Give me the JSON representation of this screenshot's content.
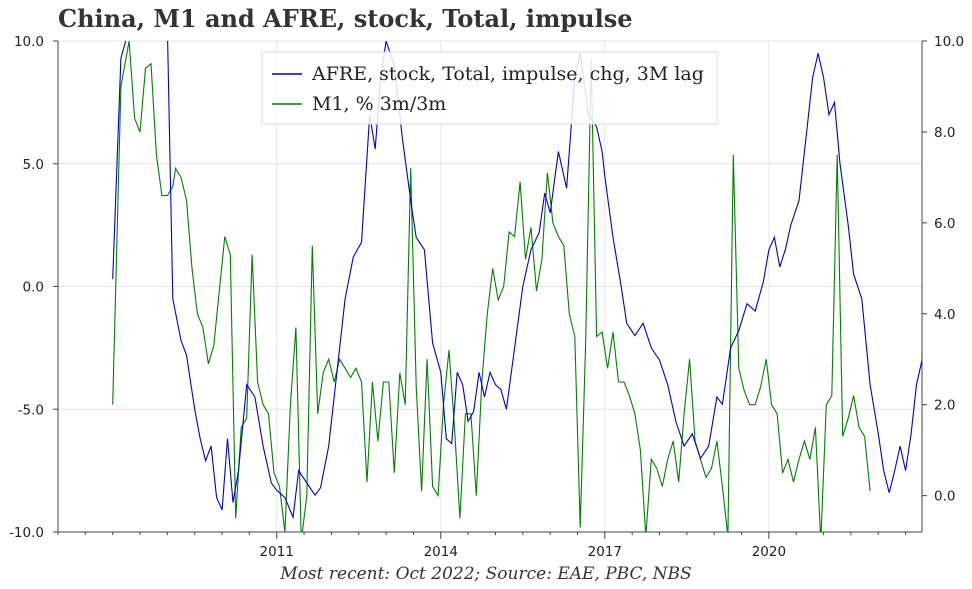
{
  "chart_data": {
    "type": "line",
    "title": "China, M1 and AFRE, stock, Total, impulse",
    "source": "Most recent: Oct 2022; Source: EAE, PBC, NBS",
    "left_axis": {
      "ylim": [
        -10,
        10
      ],
      "ticks": [
        "10.0",
        "5.0",
        "0.0",
        "-5.0",
        "-10.0"
      ],
      "tick_values": [
        10,
        5,
        0,
        -5,
        -10
      ]
    },
    "right_axis": {
      "ylim": [
        -0.8,
        10.0
      ],
      "ticks": [
        "10.0",
        "8.0",
        "6.0",
        "4.0",
        "2.0",
        "0.0"
      ],
      "tick_values": [
        10,
        8,
        6,
        4,
        2,
        0
      ]
    },
    "x_axis": {
      "xlim": [
        2007.0,
        2022.8
      ],
      "ticks": [
        "2011",
        "2014",
        "2017",
        "2020"
      ],
      "tick_values": [
        2011,
        2014,
        2017,
        2020
      ]
    },
    "grid": true,
    "legend_position": "top-center",
    "series": [
      {
        "name": "AFRE, stock, Total, impulse, chg, 3M lag",
        "axis": "left",
        "color": "#0000cc",
        "points": [
          [
            2008.0,
            0.3
          ],
          [
            2008.15,
            9.3
          ],
          [
            2008.3,
            10.5
          ],
          [
            2008.5,
            12.0
          ],
          [
            2008.7,
            14.0
          ],
          [
            2008.85,
            11.5
          ],
          [
            2009.0,
            10.5
          ],
          [
            2009.1,
            -0.5
          ],
          [
            2009.25,
            -2.2
          ],
          [
            2009.35,
            -2.8
          ],
          [
            2009.5,
            -5.0
          ],
          [
            2009.6,
            -6.2
          ],
          [
            2009.7,
            -7.1
          ],
          [
            2009.8,
            -6.5
          ],
          [
            2009.9,
            -8.6
          ],
          [
            2010.0,
            -9.1
          ],
          [
            2010.1,
            -6.2
          ],
          [
            2010.2,
            -8.8
          ],
          [
            2010.3,
            -7.5
          ],
          [
            2010.45,
            -4.0
          ],
          [
            2010.6,
            -4.5
          ],
          [
            2010.75,
            -6.5
          ],
          [
            2010.9,
            -8.0
          ],
          [
            2011.0,
            -8.3
          ],
          [
            2011.15,
            -8.6
          ],
          [
            2011.3,
            -9.4
          ],
          [
            2011.4,
            -7.5
          ],
          [
            2011.55,
            -8.0
          ],
          [
            2011.7,
            -8.5
          ],
          [
            2011.8,
            -8.2
          ],
          [
            2011.95,
            -6.5
          ],
          [
            2012.1,
            -3.5
          ],
          [
            2012.25,
            -0.5
          ],
          [
            2012.4,
            1.2
          ],
          [
            2012.55,
            1.8
          ],
          [
            2012.7,
            7.0
          ],
          [
            2012.8,
            5.6
          ],
          [
            2012.9,
            8.5
          ],
          [
            2013.0,
            10.0
          ],
          [
            2013.15,
            9.0
          ],
          [
            2013.3,
            6.0
          ],
          [
            2013.45,
            3.5
          ],
          [
            2013.55,
            2.0
          ],
          [
            2013.7,
            1.5
          ],
          [
            2013.85,
            -2.3
          ],
          [
            2014.0,
            -3.5
          ],
          [
            2014.1,
            -6.2
          ],
          [
            2014.2,
            -6.4
          ],
          [
            2014.3,
            -3.5
          ],
          [
            2014.4,
            -4.0
          ],
          [
            2014.5,
            -5.5
          ],
          [
            2014.6,
            -5.1
          ],
          [
            2014.7,
            -3.5
          ],
          [
            2014.8,
            -4.5
          ],
          [
            2014.9,
            -3.5
          ],
          [
            2015.0,
            -4.0
          ],
          [
            2015.1,
            -4.2
          ],
          [
            2015.2,
            -5.0
          ],
          [
            2015.35,
            -2.5
          ],
          [
            2015.5,
            0.0
          ],
          [
            2015.65,
            1.5
          ],
          [
            2015.8,
            2.2
          ],
          [
            2015.9,
            3.8
          ],
          [
            2016.0,
            3.0
          ],
          [
            2016.15,
            5.5
          ],
          [
            2016.3,
            4.0
          ],
          [
            2016.45,
            8.5
          ],
          [
            2016.55,
            9.5
          ],
          [
            2016.7,
            7.0
          ],
          [
            2016.85,
            6.5
          ],
          [
            2016.95,
            5.5
          ],
          [
            2017.0,
            4.5
          ],
          [
            2017.15,
            2.0
          ],
          [
            2017.3,
            0.0
          ],
          [
            2017.4,
            -1.5
          ],
          [
            2017.55,
            -2.0
          ],
          [
            2017.7,
            -1.5
          ],
          [
            2017.85,
            -2.5
          ],
          [
            2018.0,
            -3.0
          ],
          [
            2018.15,
            -4.0
          ],
          [
            2018.3,
            -5.5
          ],
          [
            2018.45,
            -6.5
          ],
          [
            2018.6,
            -6.0
          ],
          [
            2018.75,
            -7.0
          ],
          [
            2018.9,
            -6.5
          ],
          [
            2019.05,
            -4.5
          ],
          [
            2019.15,
            -4.8
          ],
          [
            2019.3,
            -2.5
          ],
          [
            2019.45,
            -1.8
          ],
          [
            2019.6,
            -0.7
          ],
          [
            2019.75,
            -1.0
          ],
          [
            2019.9,
            0.2
          ],
          [
            2020.0,
            1.5
          ],
          [
            2020.1,
            2.0
          ],
          [
            2020.2,
            0.8
          ],
          [
            2020.3,
            1.5
          ],
          [
            2020.4,
            2.5
          ],
          [
            2020.55,
            3.5
          ],
          [
            2020.7,
            6.5
          ],
          [
            2020.8,
            8.5
          ],
          [
            2020.9,
            9.5
          ],
          [
            2021.0,
            8.5
          ],
          [
            2021.1,
            7.0
          ],
          [
            2021.2,
            7.5
          ],
          [
            2021.3,
            5.0
          ],
          [
            2021.45,
            2.5
          ],
          [
            2021.55,
            0.5
          ],
          [
            2021.7,
            -0.5
          ],
          [
            2021.85,
            -4.0
          ],
          [
            2022.0,
            -6.0
          ],
          [
            2022.1,
            -7.5
          ],
          [
            2022.2,
            -8.4
          ],
          [
            2022.3,
            -7.5
          ],
          [
            2022.4,
            -6.5
          ],
          [
            2022.5,
            -7.5
          ],
          [
            2022.6,
            -6.0
          ],
          [
            2022.7,
            -4.0
          ],
          [
            2022.8,
            -3.0
          ],
          [
            2022.9,
            0.5
          ],
          [
            2023.0,
            1.0
          ],
          [
            2023.1,
            2.3
          ],
          [
            2023.2,
            1.6
          ]
        ]
      },
      {
        "name": "M1, % 3m/3m",
        "axis": "right",
        "color": "#008000",
        "points": [
          [
            2008.0,
            2.0
          ],
          [
            2008.15,
            9.0
          ],
          [
            2008.3,
            10.0
          ],
          [
            2008.4,
            8.3
          ],
          [
            2008.5,
            8.0
          ],
          [
            2008.6,
            9.4
          ],
          [
            2008.7,
            9.5
          ],
          [
            2008.8,
            7.5
          ],
          [
            2008.9,
            6.6
          ],
          [
            2009.0,
            6.6
          ],
          [
            2009.1,
            6.8
          ],
          [
            2009.15,
            7.2
          ],
          [
            2009.25,
            7.0
          ],
          [
            2009.35,
            6.5
          ],
          [
            2009.45,
            5.0
          ],
          [
            2009.55,
            4.0
          ],
          [
            2009.65,
            3.7
          ],
          [
            2009.75,
            2.9
          ],
          [
            2009.85,
            3.3
          ],
          [
            2009.95,
            4.5
          ],
          [
            2010.05,
            5.7
          ],
          [
            2010.15,
            5.3
          ],
          [
            2010.25,
            -0.5
          ],
          [
            2010.35,
            1.5
          ],
          [
            2010.45,
            1.7
          ],
          [
            2010.55,
            5.3
          ],
          [
            2010.65,
            2.5
          ],
          [
            2010.75,
            2.0
          ],
          [
            2010.85,
            1.8
          ],
          [
            2010.95,
            0.5
          ],
          [
            2011.05,
            0.2
          ],
          [
            2011.15,
            -0.8
          ],
          [
            2011.25,
            2.0
          ],
          [
            2011.35,
            3.7
          ],
          [
            2011.45,
            -1.0
          ],
          [
            2011.55,
            0.0
          ],
          [
            2011.65,
            5.5
          ],
          [
            2011.75,
            1.8
          ],
          [
            2011.85,
            2.7
          ],
          [
            2011.95,
            3.0
          ],
          [
            2012.05,
            2.5
          ],
          [
            2012.15,
            3.0
          ],
          [
            2012.25,
            2.8
          ],
          [
            2012.35,
            2.6
          ],
          [
            2012.45,
            2.8
          ],
          [
            2012.55,
            2.5
          ],
          [
            2012.65,
            0.3
          ],
          [
            2012.75,
            2.5
          ],
          [
            2012.85,
            1.2
          ],
          [
            2012.95,
            2.5
          ],
          [
            2013.05,
            2.5
          ],
          [
            2013.15,
            0.5
          ],
          [
            2013.25,
            2.7
          ],
          [
            2013.35,
            2.0
          ],
          [
            2013.45,
            7.2
          ],
          [
            2013.55,
            2.4
          ],
          [
            2013.65,
            0.1
          ],
          [
            2013.75,
            3.0
          ],
          [
            2013.85,
            0.2
          ],
          [
            2013.95,
            0.0
          ],
          [
            2014.05,
            2.0
          ],
          [
            2014.15,
            3.2
          ],
          [
            2014.25,
            1.5
          ],
          [
            2014.35,
            -0.5
          ],
          [
            2014.45,
            1.8
          ],
          [
            2014.55,
            1.8
          ],
          [
            2014.65,
            0.0
          ],
          [
            2014.75,
            2.5
          ],
          [
            2014.85,
            4.0
          ],
          [
            2014.95,
            5.0
          ],
          [
            2015.05,
            4.3
          ],
          [
            2015.15,
            4.6
          ],
          [
            2015.25,
            5.8
          ],
          [
            2015.35,
            5.7
          ],
          [
            2015.45,
            6.9
          ],
          [
            2015.55,
            5.2
          ],
          [
            2015.65,
            5.9
          ],
          [
            2015.75,
            4.5
          ],
          [
            2015.85,
            5.2
          ],
          [
            2015.95,
            7.1
          ],
          [
            2016.05,
            6.0
          ],
          [
            2016.15,
            5.7
          ],
          [
            2016.25,
            5.5
          ],
          [
            2016.35,
            4.0
          ],
          [
            2016.45,
            3.5
          ],
          [
            2016.55,
            -0.7
          ],
          [
            2016.65,
            3.4
          ],
          [
            2016.75,
            9.6
          ],
          [
            2016.85,
            3.5
          ],
          [
            2016.95,
            3.6
          ],
          [
            2017.05,
            2.8
          ],
          [
            2017.15,
            3.6
          ],
          [
            2017.25,
            2.5
          ],
          [
            2017.35,
            2.5
          ],
          [
            2017.45,
            2.2
          ],
          [
            2017.55,
            1.8
          ],
          [
            2017.65,
            1.0
          ],
          [
            2017.75,
            -0.9
          ],
          [
            2017.85,
            0.8
          ],
          [
            2017.95,
            0.6
          ],
          [
            2018.05,
            0.2
          ],
          [
            2018.15,
            0.8
          ],
          [
            2018.25,
            1.2
          ],
          [
            2018.35,
            0.3
          ],
          [
            2018.45,
            1.8
          ],
          [
            2018.55,
            3.0
          ],
          [
            2018.65,
            1.2
          ],
          [
            2018.75,
            0.8
          ],
          [
            2018.85,
            0.4
          ],
          [
            2018.95,
            0.6
          ],
          [
            2019.05,
            1.2
          ],
          [
            2019.15,
            0.2
          ],
          [
            2019.25,
            -0.9
          ],
          [
            2019.35,
            7.5
          ],
          [
            2019.45,
            2.8
          ],
          [
            2019.55,
            2.3
          ],
          [
            2019.65,
            2.0
          ],
          [
            2019.75,
            2.0
          ],
          [
            2019.85,
            2.4
          ],
          [
            2019.95,
            3.0
          ],
          [
            2020.05,
            2.0
          ],
          [
            2020.15,
            1.8
          ],
          [
            2020.25,
            0.5
          ],
          [
            2020.35,
            0.8
          ],
          [
            2020.45,
            0.3
          ],
          [
            2020.55,
            0.8
          ],
          [
            2020.65,
            1.2
          ],
          [
            2020.75,
            0.8
          ],
          [
            2020.85,
            1.5
          ],
          [
            2020.95,
            -1.0
          ],
          [
            2021.05,
            2.0
          ],
          [
            2021.15,
            2.2
          ],
          [
            2021.25,
            7.5
          ],
          [
            2021.35,
            1.3
          ],
          [
            2021.45,
            1.7
          ],
          [
            2021.55,
            2.2
          ],
          [
            2021.65,
            1.5
          ],
          [
            2021.75,
            1.3
          ],
          [
            2021.85,
            0.1
          ]
        ]
      }
    ]
  }
}
